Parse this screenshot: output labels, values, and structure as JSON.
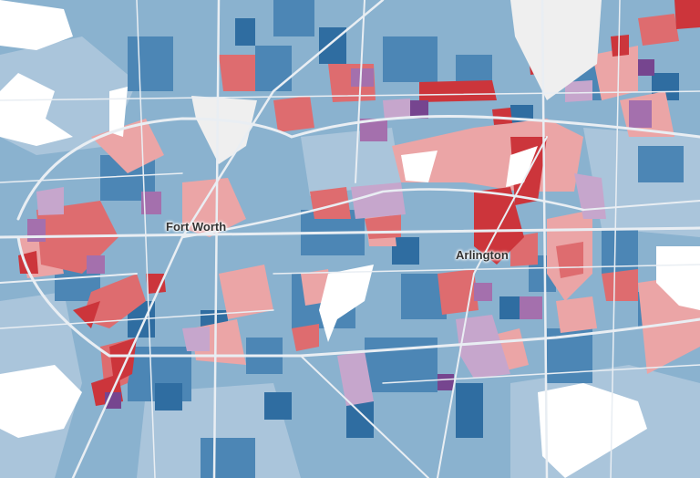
{
  "map": {
    "city_labels": {
      "fort_worth": "Fort Worth",
      "arlington": "Arlington"
    },
    "palette": {
      "dark_blue": "#2f6da1",
      "mid_blue": "#4c86b5",
      "light_blue": "#8ab2cf",
      "pale_blue": "#aac5db",
      "light_red": "#eba5a6",
      "mid_red": "#de6c6f",
      "dark_red": "#cc353b",
      "light_purple": "#c6a6cc",
      "mid_purple": "#a470ad",
      "dark_purple": "#76458f",
      "water": "#ffffff",
      "no_data": "#efefef",
      "roads": "#e9eef3"
    }
  }
}
